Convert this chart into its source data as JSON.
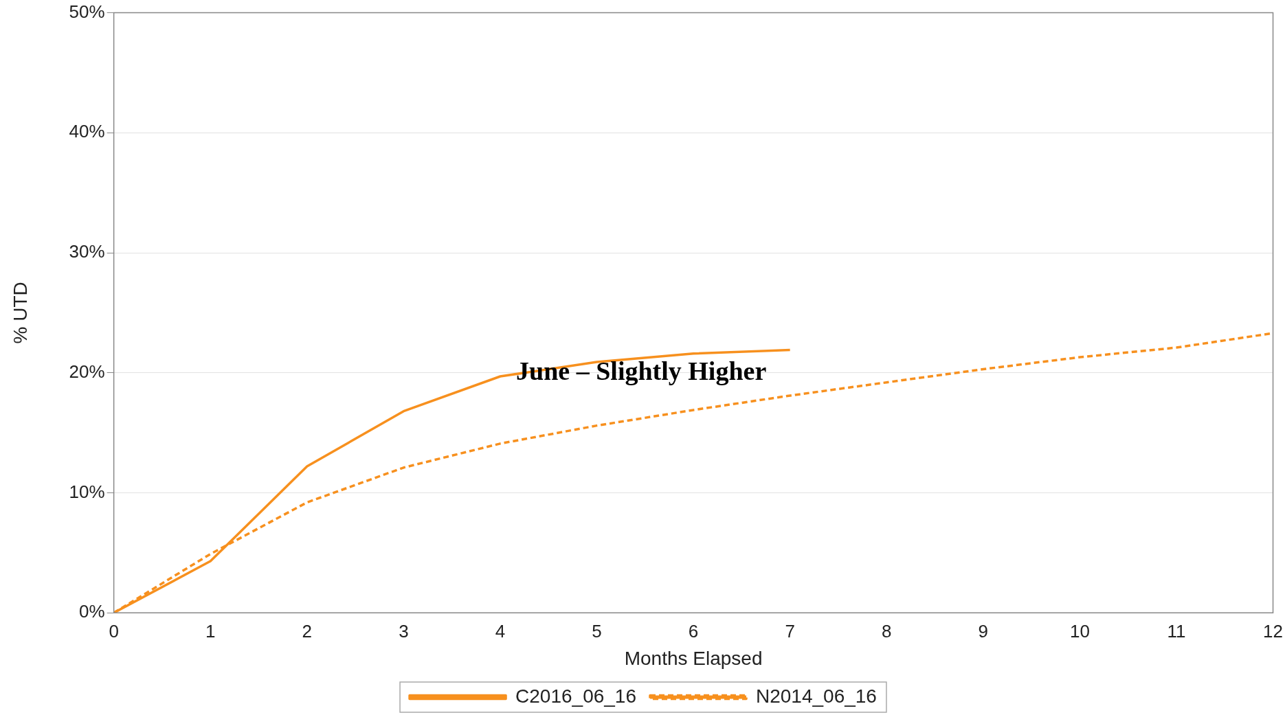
{
  "chart_data": {
    "type": "line",
    "xlabel": "Months Elapsed",
    "ylabel": "% UTD",
    "x": [
      0,
      1,
      2,
      3,
      4,
      5,
      6,
      7,
      8,
      9,
      10,
      11,
      12
    ],
    "series": [
      {
        "name": "C2016_06_16",
        "color": "#f7901e",
        "line_style": "solid",
        "values": [
          0,
          4.3,
          12.2,
          16.8,
          19.7,
          20.9,
          21.6,
          21.9,
          null,
          null,
          null,
          null,
          null
        ]
      },
      {
        "name": "N2014_06_16",
        "color": "#f7901e",
        "line_style": "dashed",
        "values": [
          0,
          4.9,
          9.2,
          12.1,
          14.1,
          15.6,
          16.9,
          18.1,
          19.2,
          20.3,
          21.3,
          22.1,
          23.3
        ]
      }
    ],
    "xlim": [
      0,
      12
    ],
    "xticks": [
      0,
      1,
      2,
      3,
      4,
      5,
      6,
      7,
      8,
      9,
      10,
      11,
      12
    ],
    "ylim": [
      0,
      50
    ],
    "yticks": [
      {
        "value": 0,
        "label": "0%"
      },
      {
        "value": 10,
        "label": "10%"
      },
      {
        "value": 20,
        "label": "20%"
      },
      {
        "value": 30,
        "label": "30%"
      },
      {
        "value": 40,
        "label": "40%"
      },
      {
        "value": 50,
        "label": "50%"
      }
    ],
    "grid": "y",
    "legend": "bottom",
    "marker": "none",
    "annotations": [
      "June – Slightly Higher"
    ]
  }
}
